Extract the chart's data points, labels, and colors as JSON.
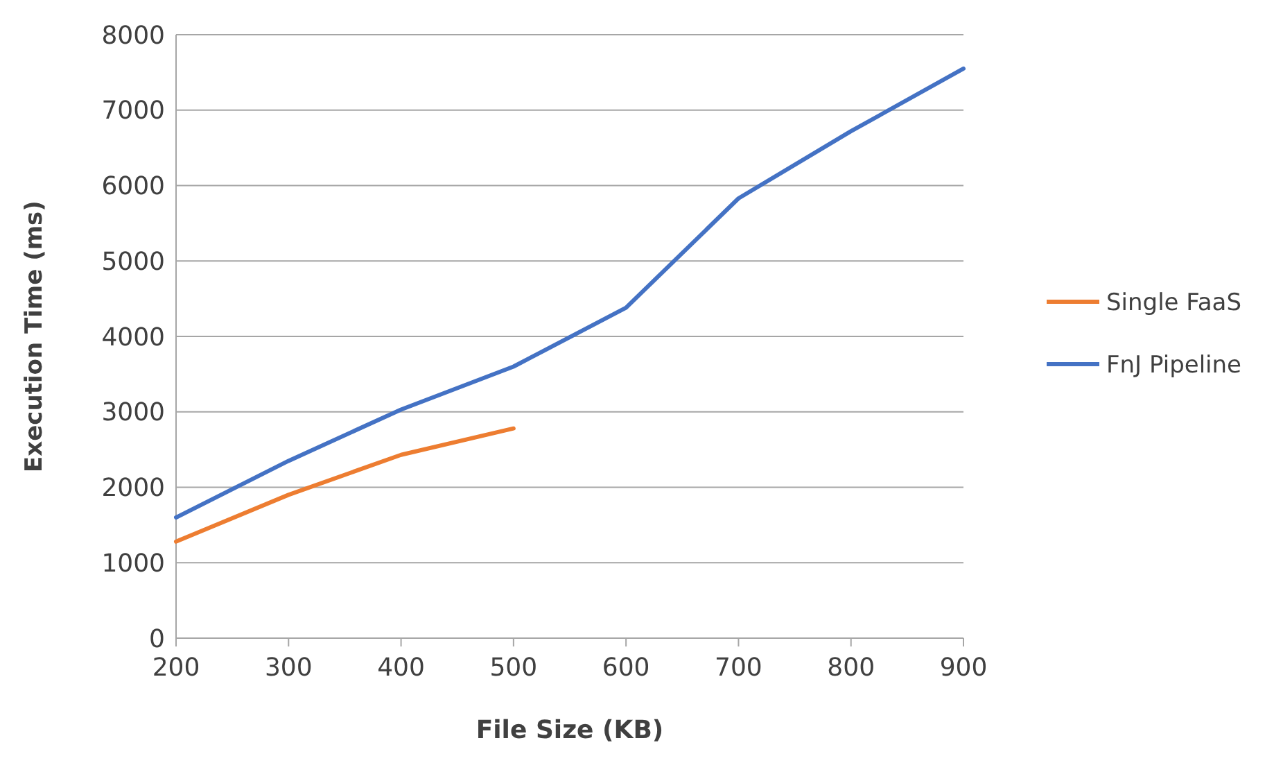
{
  "chart_data": {
    "type": "line",
    "xlabel": "File Size (KB)",
    "ylabel": "Execution Time (ms)",
    "x": [
      200,
      300,
      400,
      500,
      600,
      700,
      800,
      900
    ],
    "series": [
      {
        "name": "Single FaaS",
        "color": "#ed7d31",
        "x": [
          200,
          300,
          400,
          500
        ],
        "values": [
          1280,
          1900,
          2430,
          2780
        ]
      },
      {
        "name": "FnJ Pipeline",
        "color": "#4472c4",
        "values": [
          1600,
          2350,
          3030,
          3600,
          4380,
          5830,
          6720,
          7550
        ]
      }
    ],
    "xlim": [
      200,
      900
    ],
    "xticks": [
      200,
      300,
      400,
      500,
      600,
      700,
      800,
      900
    ],
    "ylim": [
      0,
      8000
    ],
    "yticks": [
      0,
      1000,
      2000,
      3000,
      4000,
      5000,
      6000,
      7000,
      8000
    ],
    "grid": "y",
    "legend": "right",
    "line_style": "solid",
    "marker": "none"
  }
}
